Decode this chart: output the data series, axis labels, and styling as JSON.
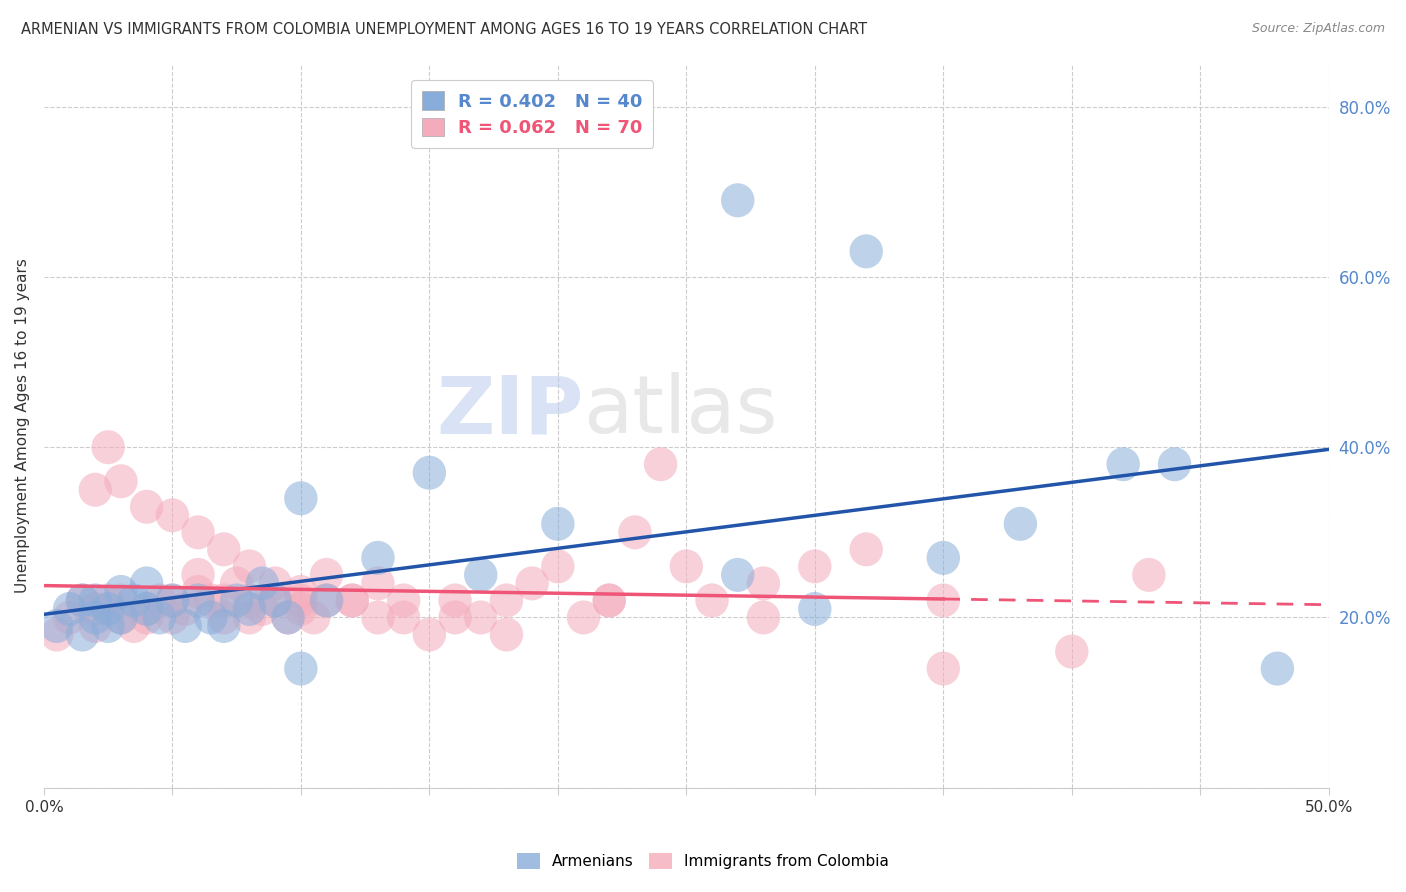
{
  "title": "ARMENIAN VS IMMIGRANTS FROM COLOMBIA UNEMPLOYMENT AMONG AGES 16 TO 19 YEARS CORRELATION CHART",
  "source": "Source: ZipAtlas.com",
  "ylabel": "Unemployment Among Ages 16 to 19 years",
  "xlim": [
    0.0,
    0.5
  ],
  "ylim": [
    0.0,
    0.85
  ],
  "xticks": [
    0.0,
    0.05,
    0.1,
    0.15,
    0.2,
    0.25,
    0.3,
    0.35,
    0.4,
    0.45,
    0.5
  ],
  "yticks_right": [
    0.0,
    0.2,
    0.4,
    0.6,
    0.8
  ],
  "yticklabels_right": [
    "",
    "20.0%",
    "40.0%",
    "60.0%",
    "80.0%"
  ],
  "armenian_color": "#89ADDA",
  "colombia_color": "#F4ABBB",
  "armenian_trend_color": "#2255AA",
  "colombia_trend_color": "#EE5577",
  "watermark_zip": "ZIP",
  "watermark_atlas": "atlas",
  "legend_R1": "R = 0.402",
  "legend_N1": "N = 40",
  "legend_R2": "R = 0.062",
  "legend_N2": "N = 70",
  "armenians_x": [
    0.005,
    0.01,
    0.015,
    0.015,
    0.02,
    0.02,
    0.025,
    0.025,
    0.03,
    0.03,
    0.035,
    0.04,
    0.04,
    0.045,
    0.05,
    0.055,
    0.06,
    0.065,
    0.07,
    0.075,
    0.08,
    0.085,
    0.09,
    0.095,
    0.1,
    0.11,
    0.13,
    0.15,
    0.17,
    0.2,
    0.27,
    0.3,
    0.35,
    0.38,
    0.42,
    0.44,
    0.48,
    0.27,
    0.32,
    0.1
  ],
  "armenians_y": [
    0.19,
    0.21,
    0.18,
    0.22,
    0.2,
    0.22,
    0.21,
    0.19,
    0.2,
    0.23,
    0.22,
    0.21,
    0.24,
    0.2,
    0.22,
    0.19,
    0.22,
    0.2,
    0.19,
    0.22,
    0.21,
    0.24,
    0.22,
    0.2,
    0.34,
    0.22,
    0.27,
    0.37,
    0.25,
    0.31,
    0.25,
    0.21,
    0.27,
    0.31,
    0.38,
    0.38,
    0.14,
    0.69,
    0.63,
    0.14
  ],
  "colombia_x": [
    0.005,
    0.01,
    0.015,
    0.02,
    0.02,
    0.025,
    0.03,
    0.03,
    0.035,
    0.04,
    0.04,
    0.045,
    0.05,
    0.05,
    0.055,
    0.06,
    0.06,
    0.065,
    0.07,
    0.07,
    0.075,
    0.08,
    0.08,
    0.085,
    0.09,
    0.095,
    0.1,
    0.1,
    0.105,
    0.11,
    0.12,
    0.13,
    0.14,
    0.15,
    0.16,
    0.17,
    0.18,
    0.19,
    0.2,
    0.21,
    0.22,
    0.23,
    0.24,
    0.25,
    0.26,
    0.28,
    0.3,
    0.32,
    0.35,
    0.43,
    0.02,
    0.025,
    0.03,
    0.04,
    0.05,
    0.06,
    0.07,
    0.08,
    0.09,
    0.1,
    0.11,
    0.12,
    0.13,
    0.14,
    0.16,
    0.18,
    0.22,
    0.28,
    0.35,
    0.4
  ],
  "colombia_y": [
    0.18,
    0.2,
    0.22,
    0.19,
    0.21,
    0.22,
    0.2,
    0.22,
    0.19,
    0.21,
    0.2,
    0.22,
    0.2,
    0.22,
    0.21,
    0.23,
    0.25,
    0.22,
    0.2,
    0.22,
    0.24,
    0.2,
    0.22,
    0.21,
    0.22,
    0.2,
    0.21,
    0.23,
    0.2,
    0.22,
    0.22,
    0.24,
    0.2,
    0.18,
    0.22,
    0.2,
    0.22,
    0.24,
    0.26,
    0.2,
    0.22,
    0.3,
    0.38,
    0.26,
    0.22,
    0.24,
    0.26,
    0.28,
    0.22,
    0.25,
    0.35,
    0.4,
    0.36,
    0.33,
    0.32,
    0.3,
    0.28,
    0.26,
    0.24,
    0.22,
    0.25,
    0.22,
    0.2,
    0.22,
    0.2,
    0.18,
    0.22,
    0.2,
    0.14,
    0.16
  ]
}
